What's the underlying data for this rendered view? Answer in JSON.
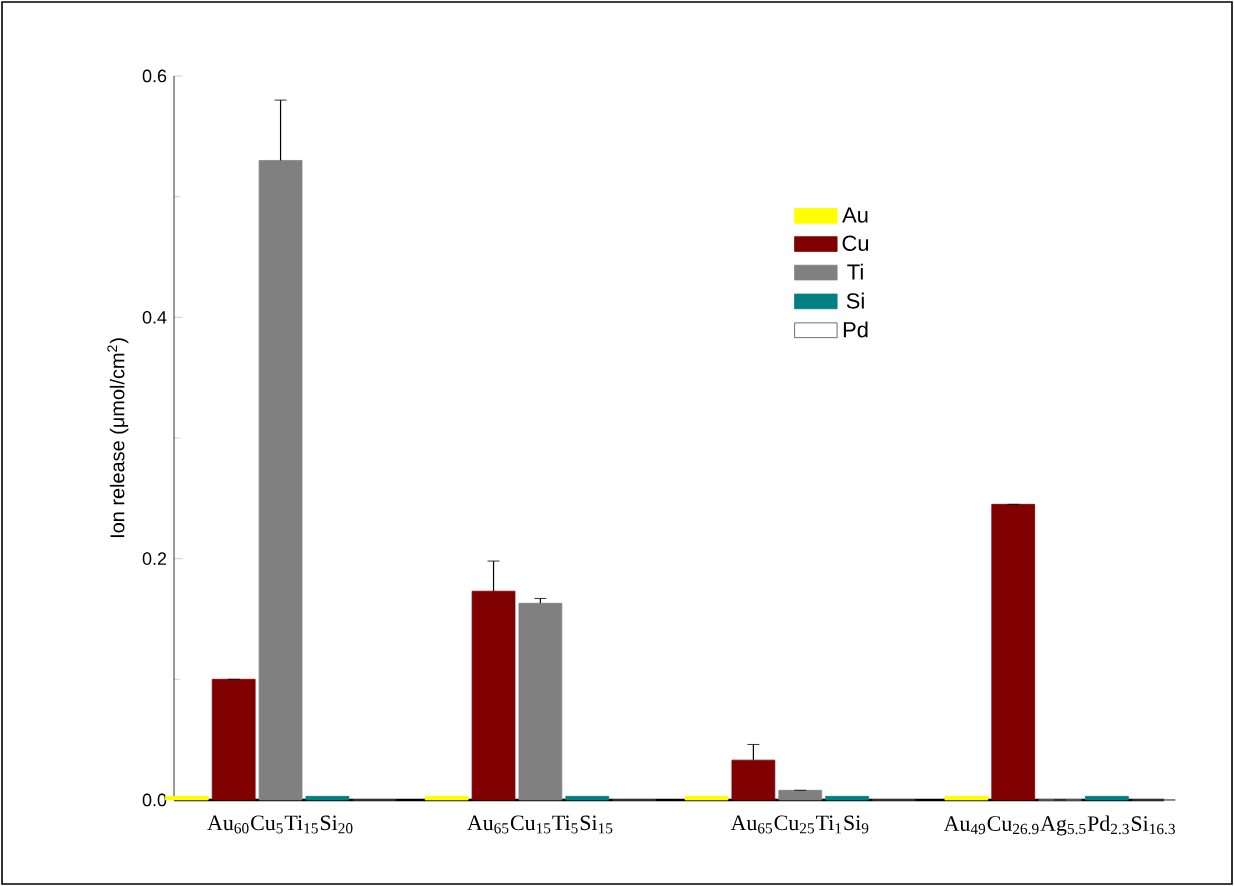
{
  "chart_data": {
    "type": "bar",
    "ylabel": "Ion release (μmol/cm$^{2}$)",
    "categories": [
      "Au$_{60}$Cu$_{5}$Ti$_{15}$Si$_{20}$",
      "Au$_{65}$Cu$_{15}$Ti$_{5}$Si$_{15}$",
      "Au$_{65}$Cu$_{25}$Ti$_{1}$Si$_{9}$",
      "Au$_{49}$Cu$_{26.9}$Ag$_{5.5}$Pd$_{2.3}$Si$_{16.3}$"
    ],
    "series": [
      {
        "name": "Au",
        "color": "#ffff00",
        "values": [
          0.003,
          0.003,
          0.003,
          0.003
        ]
      },
      {
        "name": "Cu",
        "color": "#800000",
        "values": [
          0.1,
          0.173,
          0.033,
          0.245
        ],
        "errors": [
          null,
          0.025,
          0.013,
          null
        ]
      },
      {
        "name": "Ti",
        "color": "#808080",
        "values": [
          0.53,
          0.163,
          0.008,
          0
        ],
        "errors": [
          0.05,
          0.004,
          null,
          null
        ]
      },
      {
        "name": "Si",
        "color": "#008080",
        "values": [
          0.003,
          0.003,
          0.003,
          0.003
        ]
      },
      {
        "name": "Pd",
        "color": "#ffffff",
        "values": [
          0,
          0,
          0,
          0
        ]
      }
    ],
    "ylim": [
      0,
      0.6
    ],
    "yticks": [
      {
        "value": 0,
        "label": "0.0"
      },
      0.2,
      0.4,
      0.6
    ],
    "legend": "top right"
  }
}
